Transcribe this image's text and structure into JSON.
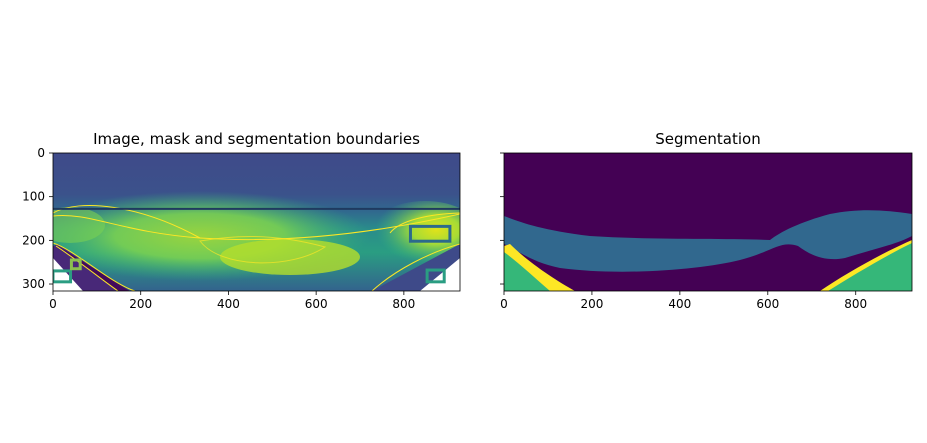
{
  "chart_data": [
    {
      "type": "heatmap",
      "title": "Image, mask and segmentation boundaries",
      "xlim": [
        0,
        928
      ],
      "ylim": [
        316,
        0
      ],
      "xticks": [
        0,
        200,
        400,
        600,
        800
      ],
      "yticks": [
        0,
        100,
        200,
        300
      ],
      "colormap": "viridis",
      "boundary_color": "#fde725",
      "horizontal_line_y": 128,
      "mask_boxes": [
        {
          "x": [
            0,
            40
          ],
          "y": [
            270,
            295
          ],
          "color": "#2a9d82"
        },
        {
          "x": [
            42,
            62
          ],
          "y": [
            245,
            265
          ],
          "color": "#8cbf4f"
        },
        {
          "x": [
            815,
            905
          ],
          "y": [
            168,
            202
          ],
          "color": "#2c6a8c"
        },
        {
          "x": [
            853,
            892
          ],
          "y": [
            268,
            295
          ],
          "color": "#2a9d82"
        }
      ]
    },
    {
      "type": "heatmap",
      "title": "Segmentation",
      "xlim": [
        0,
        928
      ],
      "ylim": [
        316,
        0
      ],
      "xticks": [
        0,
        200,
        400,
        600,
        800
      ],
      "yticks": [
        0,
        100,
        200,
        300
      ],
      "y_ticklabels_shown": false,
      "classes": [
        {
          "id": 0,
          "color": "#440154"
        },
        {
          "id": 1,
          "color": "#31688e"
        },
        {
          "id": 2,
          "color": "#35b779"
        },
        {
          "id": 3,
          "color": "#fde725"
        }
      ]
    }
  ]
}
